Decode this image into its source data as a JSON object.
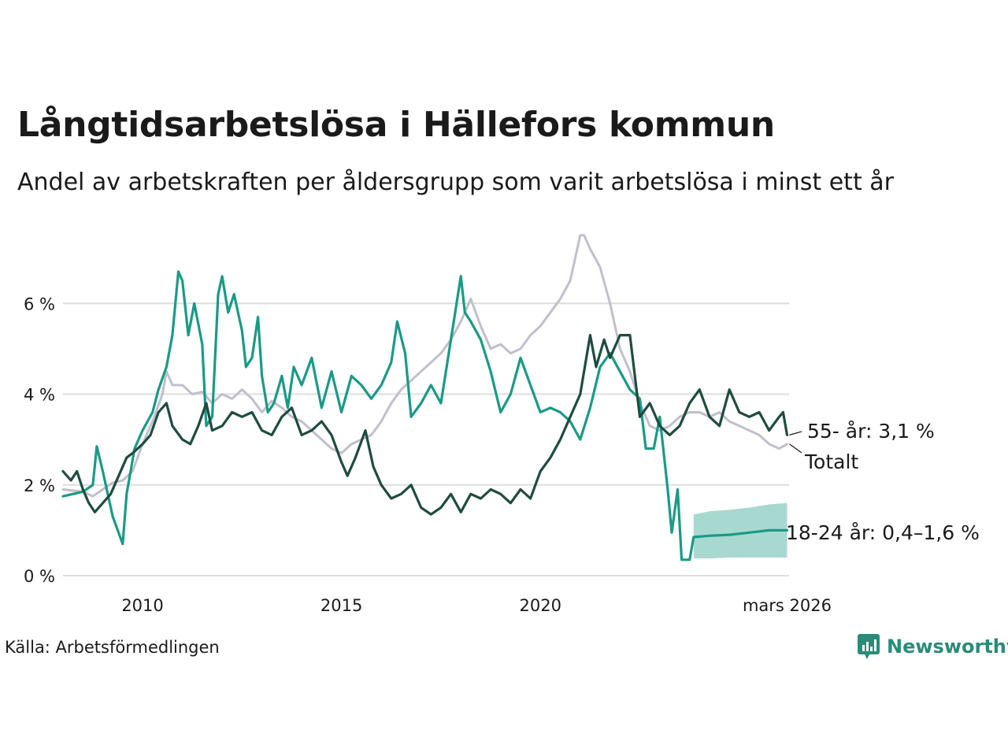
{
  "title": "Långtidsarbetslösa i Hällefors kommun",
  "subtitle": "Andel av arbetskraften per åldersgrupp som varit arbetslösa i minst ett år",
  "source": "Källa: Arbetsförmedlingen",
  "brand": "Newsworthy",
  "chart_data": {
    "type": "line",
    "title": "Långtidsarbetslösa i Hällefors kommun",
    "ylabel": "",
    "xlabel": "",
    "ylim": [
      0,
      8
    ],
    "xlim": [
      2008.0,
      2026.25
    ],
    "yticks": [
      {
        "value": 0,
        "label": "0 %"
      },
      {
        "value": 2,
        "label": "2 %"
      },
      {
        "value": 4,
        "label": "4 %"
      },
      {
        "value": 6,
        "label": "6 %"
      }
    ],
    "xticks": [
      {
        "value": 2010,
        "label": "2010"
      },
      {
        "value": 2015,
        "label": "2015"
      },
      {
        "value": 2020,
        "label": "2020"
      },
      {
        "value": 2026.2,
        "label": "mars 2026"
      }
    ],
    "series": [
      {
        "name": "Totalt",
        "label": "Totalt",
        "color": "#c2bfcc",
        "points": [
          [
            2008.0,
            1.9
          ],
          [
            2008.5,
            1.85
          ],
          [
            2008.75,
            1.75
          ],
          [
            2009.0,
            1.9
          ],
          [
            2009.25,
            2.05
          ],
          [
            2009.5,
            2.1
          ],
          [
            2009.75,
            2.3
          ],
          [
            2010.0,
            2.9
          ],
          [
            2010.25,
            3.4
          ],
          [
            2010.5,
            4.0
          ],
          [
            2010.6,
            4.5
          ],
          [
            2010.75,
            4.2
          ],
          [
            2011.0,
            4.2
          ],
          [
            2011.25,
            4.0
          ],
          [
            2011.5,
            4.05
          ],
          [
            2011.75,
            3.8
          ],
          [
            2012.0,
            4.0
          ],
          [
            2012.25,
            3.9
          ],
          [
            2012.5,
            4.1
          ],
          [
            2012.75,
            3.9
          ],
          [
            2013.0,
            3.6
          ],
          [
            2013.25,
            3.85
          ],
          [
            2013.5,
            3.7
          ],
          [
            2013.75,
            3.5
          ],
          [
            2014.0,
            3.4
          ],
          [
            2014.25,
            3.2
          ],
          [
            2014.5,
            3.0
          ],
          [
            2014.75,
            2.8
          ],
          [
            2015.0,
            2.7
          ],
          [
            2015.25,
            2.9
          ],
          [
            2015.5,
            3.0
          ],
          [
            2015.75,
            3.1
          ],
          [
            2016.0,
            3.4
          ],
          [
            2016.25,
            3.8
          ],
          [
            2016.5,
            4.1
          ],
          [
            2016.75,
            4.3
          ],
          [
            2017.0,
            4.5
          ],
          [
            2017.25,
            4.7
          ],
          [
            2017.5,
            4.9
          ],
          [
            2017.75,
            5.2
          ],
          [
            2018.0,
            5.6
          ],
          [
            2018.25,
            6.1
          ],
          [
            2018.5,
            5.5
          ],
          [
            2018.75,
            5.0
          ],
          [
            2019.0,
            5.1
          ],
          [
            2019.25,
            4.9
          ],
          [
            2019.5,
            5.0
          ],
          [
            2019.75,
            5.3
          ],
          [
            2020.0,
            5.5
          ],
          [
            2020.25,
            5.8
          ],
          [
            2020.5,
            6.1
          ],
          [
            2020.75,
            6.5
          ],
          [
            2021.0,
            7.5
          ],
          [
            2021.1,
            7.5
          ],
          [
            2021.25,
            7.2
          ],
          [
            2021.5,
            6.8
          ],
          [
            2021.75,
            6.0
          ],
          [
            2022.0,
            5.0
          ],
          [
            2022.25,
            4.5
          ],
          [
            2022.5,
            3.8
          ],
          [
            2022.75,
            3.3
          ],
          [
            2023.0,
            3.2
          ],
          [
            2023.25,
            3.3
          ],
          [
            2023.5,
            3.5
          ],
          [
            2023.75,
            3.6
          ],
          [
            2024.0,
            3.6
          ],
          [
            2024.25,
            3.5
          ],
          [
            2024.5,
            3.6
          ],
          [
            2024.75,
            3.4
          ],
          [
            2025.0,
            3.3
          ],
          [
            2025.25,
            3.2
          ],
          [
            2025.5,
            3.1
          ],
          [
            2025.75,
            2.9
          ],
          [
            2026.0,
            2.8
          ],
          [
            2026.2,
            2.9
          ]
        ]
      },
      {
        "name": "18-24 år",
        "label": "18-24 år: 0,4–1,6 %",
        "color": "#1a9a85",
        "points": [
          [
            2008.0,
            1.75
          ],
          [
            2008.25,
            1.8
          ],
          [
            2008.5,
            1.85
          ],
          [
            2008.75,
            2.0
          ],
          [
            2008.85,
            2.85
          ],
          [
            2009.0,
            2.3
          ],
          [
            2009.25,
            1.3
          ],
          [
            2009.5,
            0.7
          ],
          [
            2009.6,
            1.8
          ],
          [
            2009.8,
            2.8
          ],
          [
            2010.0,
            3.2
          ],
          [
            2010.25,
            3.6
          ],
          [
            2010.4,
            4.1
          ],
          [
            2010.6,
            4.6
          ],
          [
            2010.75,
            5.3
          ],
          [
            2010.9,
            6.7
          ],
          [
            2011.0,
            6.5
          ],
          [
            2011.15,
            5.3
          ],
          [
            2011.3,
            6.0
          ],
          [
            2011.5,
            5.1
          ],
          [
            2011.6,
            3.3
          ],
          [
            2011.75,
            3.5
          ],
          [
            2011.9,
            6.2
          ],
          [
            2012.0,
            6.6
          ],
          [
            2012.15,
            5.8
          ],
          [
            2012.3,
            6.2
          ],
          [
            2012.5,
            5.4
          ],
          [
            2012.6,
            4.6
          ],
          [
            2012.75,
            4.8
          ],
          [
            2012.9,
            5.7
          ],
          [
            2013.0,
            4.4
          ],
          [
            2013.15,
            3.6
          ],
          [
            2013.3,
            3.8
          ],
          [
            2013.5,
            4.4
          ],
          [
            2013.65,
            3.7
          ],
          [
            2013.8,
            4.6
          ],
          [
            2014.0,
            4.2
          ],
          [
            2014.25,
            4.8
          ],
          [
            2014.5,
            3.7
          ],
          [
            2014.75,
            4.5
          ],
          [
            2015.0,
            3.6
          ],
          [
            2015.25,
            4.4
          ],
          [
            2015.5,
            4.2
          ],
          [
            2015.75,
            3.9
          ],
          [
            2016.0,
            4.2
          ],
          [
            2016.25,
            4.7
          ],
          [
            2016.4,
            5.6
          ],
          [
            2016.6,
            4.9
          ],
          [
            2016.75,
            3.5
          ],
          [
            2017.0,
            3.8
          ],
          [
            2017.25,
            4.2
          ],
          [
            2017.5,
            3.8
          ],
          [
            2017.75,
            5.2
          ],
          [
            2018.0,
            6.6
          ],
          [
            2018.1,
            5.8
          ],
          [
            2018.25,
            5.6
          ],
          [
            2018.5,
            5.2
          ],
          [
            2018.75,
            4.5
          ],
          [
            2019.0,
            3.6
          ],
          [
            2019.25,
            4.0
          ],
          [
            2019.5,
            4.8
          ],
          [
            2019.75,
            4.2
          ],
          [
            2020.0,
            3.6
          ],
          [
            2020.25,
            3.7
          ],
          [
            2020.5,
            3.6
          ],
          [
            2020.75,
            3.4
          ],
          [
            2021.0,
            3.0
          ],
          [
            2021.25,
            3.7
          ],
          [
            2021.5,
            4.6
          ],
          [
            2021.75,
            4.9
          ],
          [
            2022.0,
            4.5
          ],
          [
            2022.25,
            4.1
          ],
          [
            2022.5,
            3.9
          ],
          [
            2022.65,
            2.8
          ],
          [
            2022.85,
            2.8
          ],
          [
            2023.0,
            3.5
          ],
          [
            2023.2,
            1.9
          ],
          [
            2023.3,
            0.95
          ],
          [
            2023.45,
            1.9
          ],
          [
            2023.55,
            0.35
          ],
          [
            2023.75,
            0.35
          ],
          [
            2023.85,
            0.85
          ],
          [
            2024.25,
            0.88
          ],
          [
            2024.75,
            0.9
          ],
          [
            2025.25,
            0.95
          ],
          [
            2025.75,
            1.0
          ],
          [
            2026.2,
            1.0
          ]
        ],
        "band": {
          "from_index": 81,
          "lower": [
            0.38,
            0.38,
            0.4,
            0.4,
            0.4,
            0.4
          ],
          "upper": [
            1.35,
            1.42,
            1.45,
            1.5,
            1.57,
            1.6
          ],
          "x": [
            2023.85,
            2024.25,
            2024.75,
            2025.25,
            2025.75,
            2026.2
          ]
        }
      },
      {
        "name": "55- år",
        "label": "55- år: 3,1 %",
        "color": "#1f4c40",
        "points": [
          [
            2008.0,
            2.3
          ],
          [
            2008.2,
            2.1
          ],
          [
            2008.35,
            2.3
          ],
          [
            2008.5,
            1.9
          ],
          [
            2008.65,
            1.6
          ],
          [
            2008.8,
            1.4
          ],
          [
            2009.0,
            1.6
          ],
          [
            2009.2,
            1.8
          ],
          [
            2009.4,
            2.2
          ],
          [
            2009.6,
            2.6
          ],
          [
            2009.75,
            2.7
          ],
          [
            2010.0,
            2.9
          ],
          [
            2010.2,
            3.1
          ],
          [
            2010.4,
            3.6
          ],
          [
            2010.6,
            3.8
          ],
          [
            2010.75,
            3.3
          ],
          [
            2011.0,
            3.0
          ],
          [
            2011.2,
            2.9
          ],
          [
            2011.4,
            3.3
          ],
          [
            2011.6,
            3.8
          ],
          [
            2011.75,
            3.2
          ],
          [
            2012.0,
            3.3
          ],
          [
            2012.25,
            3.6
          ],
          [
            2012.5,
            3.5
          ],
          [
            2012.75,
            3.6
          ],
          [
            2013.0,
            3.2
          ],
          [
            2013.25,
            3.1
          ],
          [
            2013.5,
            3.5
          ],
          [
            2013.75,
            3.7
          ],
          [
            2014.0,
            3.1
          ],
          [
            2014.25,
            3.2
          ],
          [
            2014.5,
            3.4
          ],
          [
            2014.75,
            3.1
          ],
          [
            2015.0,
            2.5
          ],
          [
            2015.15,
            2.2
          ],
          [
            2015.35,
            2.6
          ],
          [
            2015.6,
            3.2
          ],
          [
            2015.8,
            2.4
          ],
          [
            2016.0,
            2.0
          ],
          [
            2016.25,
            1.7
          ],
          [
            2016.5,
            1.8
          ],
          [
            2016.75,
            2.0
          ],
          [
            2017.0,
            1.5
          ],
          [
            2017.25,
            1.35
          ],
          [
            2017.5,
            1.5
          ],
          [
            2017.75,
            1.8
          ],
          [
            2018.0,
            1.4
          ],
          [
            2018.25,
            1.8
          ],
          [
            2018.5,
            1.7
          ],
          [
            2018.75,
            1.9
          ],
          [
            2019.0,
            1.8
          ],
          [
            2019.25,
            1.6
          ],
          [
            2019.5,
            1.9
          ],
          [
            2019.75,
            1.7
          ],
          [
            2020.0,
            2.3
          ],
          [
            2020.25,
            2.6
          ],
          [
            2020.5,
            3.0
          ],
          [
            2020.75,
            3.5
          ],
          [
            2021.0,
            4.0
          ],
          [
            2021.25,
            5.3
          ],
          [
            2021.4,
            4.6
          ],
          [
            2021.6,
            5.2
          ],
          [
            2021.75,
            4.8
          ],
          [
            2022.0,
            5.3
          ],
          [
            2022.25,
            5.3
          ],
          [
            2022.5,
            3.5
          ],
          [
            2022.75,
            3.8
          ],
          [
            2023.0,
            3.3
          ],
          [
            2023.25,
            3.1
          ],
          [
            2023.5,
            3.3
          ],
          [
            2023.75,
            3.8
          ],
          [
            2024.0,
            4.1
          ],
          [
            2024.25,
            3.5
          ],
          [
            2024.5,
            3.3
          ],
          [
            2024.75,
            4.1
          ],
          [
            2025.0,
            3.6
          ],
          [
            2025.25,
            3.5
          ],
          [
            2025.5,
            3.6
          ],
          [
            2025.75,
            3.2
          ],
          [
            2026.0,
            3.5
          ],
          [
            2026.1,
            3.6
          ],
          [
            2026.2,
            3.1
          ]
        ]
      }
    ]
  }
}
